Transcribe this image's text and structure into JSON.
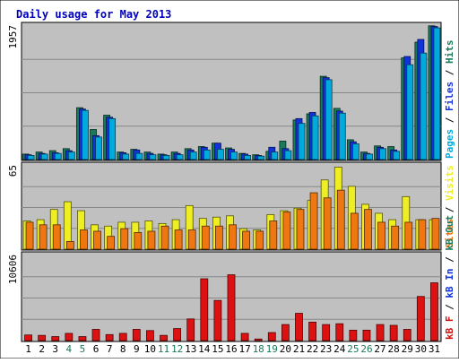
{
  "chart_data": {
    "type": "bar",
    "title": "Daily usage for May 2013",
    "categories": [
      "1",
      "2",
      "3",
      "4",
      "5",
      "6",
      "7",
      "8",
      "9",
      "10",
      "11",
      "12",
      "13",
      "14",
      "15",
      "16",
      "17",
      "18",
      "19",
      "20",
      "21",
      "22",
      "23",
      "24",
      "25",
      "26",
      "27",
      "28",
      "29",
      "30",
      "31"
    ],
    "weekend_days": [
      "4",
      "5",
      "11",
      "12",
      "18",
      "19",
      "25",
      "26"
    ],
    "panels": [
      {
        "id": "hits",
        "max_label": "1957",
        "ylim": [
          0,
          1957
        ],
        "grid": true,
        "legend_side": "right",
        "legend": [
          {
            "text": "Pages",
            "color": "#00aadd"
          },
          {
            "text": "Files",
            "color": "#1133dd"
          },
          {
            "text": "Hits",
            "color": "#1a7a5a"
          }
        ],
        "series": [
          {
            "name": "Hits",
            "color": "#1a7a5a",
            "values": [
              80,
              110,
              130,
              160,
              760,
              440,
              650,
              110,
              150,
              110,
              80,
              110,
              160,
              190,
              240,
              170,
              90,
              70,
              120,
              270,
              580,
              670,
              1220,
              750,
              290,
              110,
              200,
              190,
              1490,
              1720,
              1960
            ]
          },
          {
            "name": "Files",
            "color": "#1133dd",
            "values": [
              70,
              90,
              100,
              130,
              740,
              350,
              620,
              100,
              140,
              90,
              70,
              90,
              140,
              180,
              240,
              150,
              80,
              60,
              180,
              160,
              600,
              690,
              1200,
              710,
              260,
              90,
              180,
              140,
              1510,
              1760,
              1950
            ]
          },
          {
            "name": "Pages",
            "color": "#00aadd",
            "values": [
              60,
              80,
              90,
              110,
              720,
              330,
              600,
              80,
              90,
              70,
              60,
              70,
              110,
              140,
              150,
              110,
              60,
              50,
              110,
              130,
              530,
              640,
              1170,
              680,
              230,
              80,
              160,
              120,
              1390,
              1560,
              1930
            ]
          }
        ]
      },
      {
        "id": "visits",
        "max_label": "65",
        "ylim": [
          0,
          65
        ],
        "grid": true,
        "legend_side": "right",
        "legend": [
          {
            "text": "Sites",
            "color": "#ee7711"
          },
          {
            "text": "Visits",
            "color": "#eeee22"
          }
        ],
        "series": [
          {
            "name": "Visits",
            "color": "#eeee22",
            "values": [
              22,
              23,
              31,
              37,
              30,
              19,
              18,
              21,
              21,
              22,
              20,
              23,
              34,
              24,
              25,
              26,
              16,
              15,
              27,
              30,
              32,
              38,
              54,
              64,
              49,
              35,
              28,
              23,
              41,
              23,
              23
            ]
          },
          {
            "name": "Sites",
            "color": "#ee7711",
            "values": [
              21,
              19,
              19,
              6,
              15,
              14,
              10,
              16,
              13,
              14,
              18,
              15,
              15,
              18,
              18,
              19,
              14,
              14,
              22,
              29,
              31,
              44,
              40,
              46,
              28,
              31,
              21,
              18,
              21,
              23,
              24
            ]
          }
        ]
      },
      {
        "id": "kbytes",
        "max_label": "10606",
        "ylim": [
          0,
          10606
        ],
        "grid": true,
        "legend_side": "right",
        "legend": [
          {
            "text": "kB F",
            "color": "#cc1111"
          },
          {
            "text": "kB In",
            "color": "#1133dd"
          },
          {
            "text": "kB Out",
            "color": "#1a7a5a"
          }
        ],
        "series": [
          {
            "name": "kB F",
            "color": "#dd1111",
            "values": [
              700,
              650,
              500,
              900,
              500,
              1400,
              750,
              900,
              1400,
              1250,
              650,
              1500,
              2700,
              7700,
              5000,
              8200,
              900,
              200,
              1000,
              2000,
              3400,
              2300,
              2000,
              2100,
              1300,
              1300,
              2000,
              1900,
              1400,
              5500,
              7200
            ]
          }
        ]
      }
    ]
  }
}
